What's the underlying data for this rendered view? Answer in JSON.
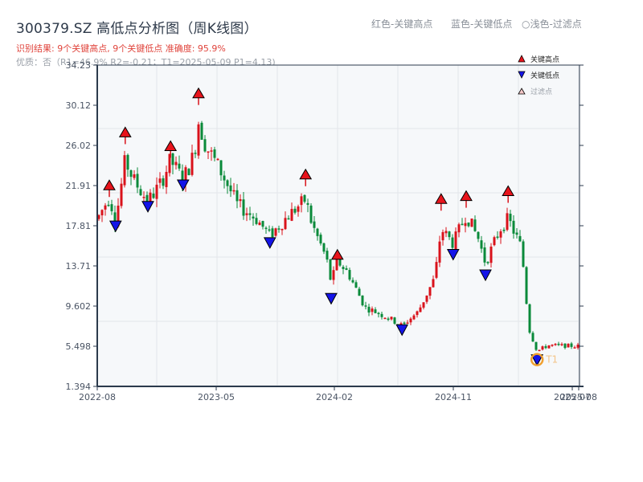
{
  "header": {
    "title": "300379.SZ 高低点分析图（周K线图）",
    "result_line": "识别结果: 9个关键高点, 9个关键低点  准确度: 95.9%",
    "quality_line": "优质：否（R1=46.9%  R2=-0.21；T1=2025-05-09 P1=4.13)"
  },
  "top_legend": {
    "red": "红色-关键高点",
    "blue": "蓝色-关键低点",
    "light": "○浅色-过滤点"
  },
  "legend": {
    "items": [
      {
        "label": "关键高点",
        "marker": "triangle-up",
        "color": "#e8141c"
      },
      {
        "label": "关键低点",
        "marker": "triangle-down",
        "color": "#1414e8"
      },
      {
        "label": "过滤点",
        "marker": "triangle-up-outline",
        "color": "#f5c8c8"
      }
    ]
  },
  "colors": {
    "up": "#d9121b",
    "down": "#0a8a3a",
    "high_marker": "#e8141c",
    "low_marker": "#1414e8",
    "t1_circle": "#f0a030",
    "axis": "#2b3a4c",
    "grid": "#e3e6ea",
    "plot_bg": "#f6f8fa"
  },
  "chart_data": {
    "type": "candlestick",
    "title": "300379.SZ 高低点分析图（周K线图）",
    "xlabel": "",
    "ylabel": "",
    "ylim": [
      1.394,
      34.23
    ],
    "y_ticks": [
      "34.23",
      "30.12",
      "26.02",
      "21.91",
      "17.81",
      "13.71",
      "9.602",
      "5.498",
      "1.394"
    ],
    "x_ticks": [
      "2022-08",
      "2023-05",
      "2024-02",
      "2024-11",
      "2025-07",
      "2025-08"
    ],
    "grid": true,
    "legend_position": "top-right",
    "key_highs": [
      {
        "x_frac": 0.025,
        "price": 21.9
      },
      {
        "x_frac": 0.058,
        "price": 27.3
      },
      {
        "x_frac": 0.152,
        "price": 25.9
      },
      {
        "x_frac": 0.21,
        "price": 31.3
      },
      {
        "x_frac": 0.432,
        "price": 23.0
      },
      {
        "x_frac": 0.498,
        "price": 14.8
      },
      {
        "x_frac": 0.713,
        "price": 20.5
      },
      {
        "x_frac": 0.765,
        "price": 20.8
      },
      {
        "x_frac": 0.852,
        "price": 21.3
      }
    ],
    "key_lows": [
      {
        "x_frac": 0.038,
        "price": 17.8
      },
      {
        "x_frac": 0.105,
        "price": 19.8
      },
      {
        "x_frac": 0.178,
        "price": 22.0
      },
      {
        "x_frac": 0.358,
        "price": 16.1
      },
      {
        "x_frac": 0.485,
        "price": 10.4
      },
      {
        "x_frac": 0.632,
        "price": 7.2
      },
      {
        "x_frac": 0.738,
        "price": 14.9
      },
      {
        "x_frac": 0.805,
        "price": 12.8
      },
      {
        "x_frac": 0.912,
        "price": 4.13
      }
    ],
    "t1_point": {
      "label": "T1",
      "date": "2025-05-09",
      "price": 4.13
    },
    "price_path": [
      [
        0.0,
        18.5
      ],
      [
        0.025,
        20.8
      ],
      [
        0.038,
        18.3
      ],
      [
        0.058,
        24.5
      ],
      [
        0.075,
        22.5
      ],
      [
        0.105,
        20.3
      ],
      [
        0.13,
        22.0
      ],
      [
        0.152,
        24.5
      ],
      [
        0.178,
        22.5
      ],
      [
        0.2,
        25.0
      ],
      [
        0.21,
        28.5
      ],
      [
        0.225,
        26.0
      ],
      [
        0.255,
        23.5
      ],
      [
        0.29,
        20.0
      ],
      [
        0.33,
        18.5
      ],
      [
        0.358,
        16.8
      ],
      [
        0.395,
        18.8
      ],
      [
        0.432,
        20.5
      ],
      [
        0.445,
        18.0
      ],
      [
        0.475,
        14.5
      ],
      [
        0.485,
        12.0
      ],
      [
        0.498,
        14.2
      ],
      [
        0.52,
        13.0
      ],
      [
        0.555,
        9.5
      ],
      [
        0.6,
        8.5
      ],
      [
        0.632,
        7.6
      ],
      [
        0.665,
        9.0
      ],
      [
        0.7,
        12.5
      ],
      [
        0.713,
        17.5
      ],
      [
        0.738,
        16.0
      ],
      [
        0.765,
        19.0
      ],
      [
        0.79,
        16.5
      ],
      [
        0.805,
        14.0
      ],
      [
        0.835,
        17.5
      ],
      [
        0.852,
        18.5
      ],
      [
        0.88,
        15.5
      ],
      [
        0.895,
        7.3
      ],
      [
        0.912,
        5.0
      ],
      [
        0.935,
        5.6
      ],
      [
        1.0,
        5.5
      ]
    ],
    "candle_count": 150
  }
}
